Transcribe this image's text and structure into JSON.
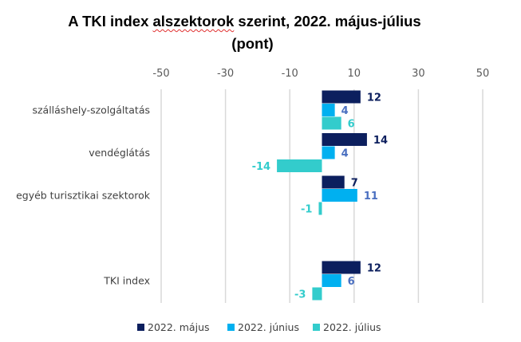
{
  "chart_data": {
    "type": "bar",
    "orientation": "horizontal",
    "title_line1_pre": "A TKI index ",
    "title_line1_flagged": "alszektorok",
    "title_line1_post": " szerint, 2022. május-július",
    "title_line2": "(pont)",
    "categories": [
      "szálláshely-szolgáltatás",
      "vendéglátás",
      "egyéb turisztikai szektorok",
      "",
      "TKI index"
    ],
    "xlim": [
      -50,
      50
    ],
    "xticks": [
      -50,
      -30,
      -10,
      10,
      30,
      50
    ],
    "grid": true,
    "legend_position": "bottom",
    "series": [
      {
        "name": "2022. május",
        "color": "#0c1f5e",
        "label_color": "#0c1f5e",
        "values": [
          12,
          14,
          7,
          null,
          12
        ]
      },
      {
        "name": "2022. június",
        "color": "#00b0f0",
        "label_color": "#4a6fc0",
        "values": [
          4,
          4,
          11,
          null,
          6
        ]
      },
      {
        "name": "2022. július",
        "color": "#33cccc",
        "label_color": "#33cccc",
        "values": [
          6,
          -14,
          -1,
          null,
          -3
        ]
      }
    ]
  }
}
